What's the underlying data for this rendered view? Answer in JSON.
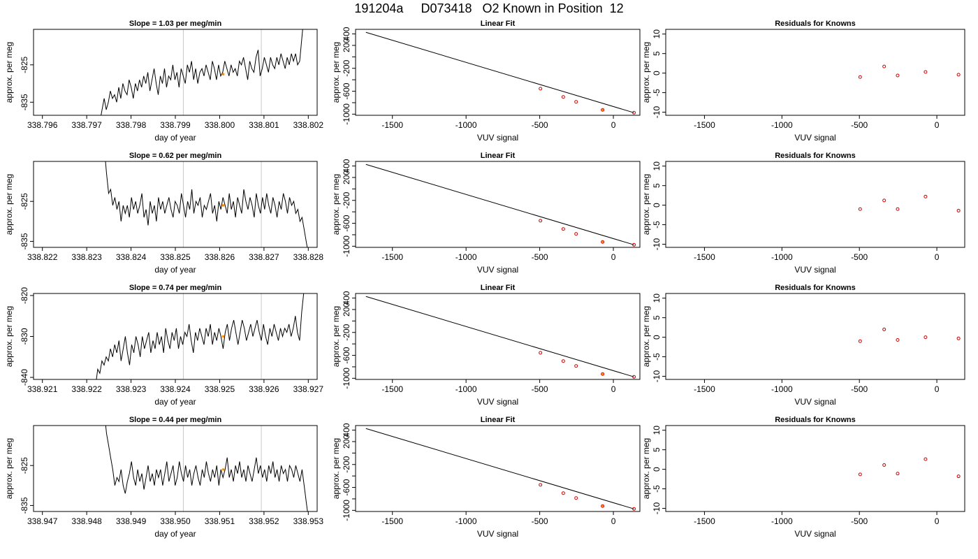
{
  "title": "191204a     D073418   O2 Known in Position  12",
  "chart_data": [
    {
      "type": "line",
      "row": 1,
      "column": 1,
      "title": "Slope =  1.03  per meg/min",
      "xlabel": "day of year",
      "ylabel": "approx. per meg",
      "xlim": [
        338.7958,
        338.8022
      ],
      "ylim": [
        -838.5,
        -815.5
      ],
      "xticks": [
        "338.796",
        "338.797",
        "338.798",
        "338.799",
        "338.800",
        "338.801",
        "338.802"
      ],
      "yticks": [
        "-835",
        "-825"
      ],
      "vlines": [
        338.79918,
        338.80094
      ],
      "highlight_point": {
        "x": 338.80008,
        "y": -827.5
      },
      "series": [
        {
          "x_start": 338.7973,
          "x_end": 338.8019,
          "values": [
            -840,
            -837,
            -834,
            -837,
            -835,
            -832,
            -834,
            -833,
            -835,
            -831,
            -834,
            -830,
            -832,
            -833,
            -829,
            -831,
            -834,
            -830,
            -832,
            -829,
            -831,
            -828,
            -830,
            -827,
            -832,
            -829,
            -826,
            -830,
            -833,
            -828,
            -830,
            -826,
            -831,
            -828,
            -829,
            -825,
            -829,
            -827,
            -831,
            -826,
            -828,
            -830,
            -825,
            -827,
            -824,
            -829,
            -826,
            -830,
            -827,
            -826,
            -828,
            -825,
            -827,
            -829,
            -824,
            -826,
            -829,
            -825,
            -828,
            -827,
            -824,
            -826,
            -828,
            -825,
            -827,
            -826,
            -828,
            -824,
            -825,
            -823,
            -826,
            -829,
            -824,
            -826,
            -827,
            -823,
            -821,
            -828,
            -826,
            -823,
            -825,
            -827,
            -823,
            -825,
            -826,
            -823,
            -825,
            -822,
            -824,
            -826,
            -823,
            -825,
            -822,
            -824,
            -822,
            -825,
            -824,
            -818,
            -812
          ]
        }
      ]
    },
    {
      "type": "scatter",
      "row": 1,
      "column": 2,
      "title": "Linear Fit",
      "xlabel": "VUV signal",
      "ylabel": "approx. per meg",
      "xlim": [
        -1750,
        180
      ],
      "ylim": [
        -1020,
        480
      ],
      "xticks": [
        -1500,
        -1000,
        -500,
        0
      ],
      "yticks": [
        -1000,
        -800,
        -600,
        -400,
        -200,
        0,
        200,
        400
      ],
      "ytick_labels": [
        "-1000",
        "",
        "-600",
        "",
        "-200",
        "",
        "200",
        "400"
      ],
      "fit_line": {
        "x": [
          -1680,
          140
        ],
        "y": [
          428,
          -975
        ]
      },
      "points": {
        "x": [
          -495,
          -340,
          -253,
          -73,
          140
        ],
        "y": [
          -555,
          -700,
          -785,
          -925,
          -975
        ]
      },
      "highlight_point": {
        "x": -73,
        "y": -925
      }
    },
    {
      "type": "scatter",
      "row": 1,
      "column": 3,
      "title": "Residuals for Knowns",
      "xlabel": "VUV signal",
      "ylabel": "approx. per meg",
      "xlim": [
        -1750,
        180
      ],
      "ylim": [
        -10.8,
        11.2
      ],
      "xticks": [
        -1500,
        -1000,
        -500,
        0
      ],
      "yticks": [
        -10,
        -5,
        0,
        5,
        10
      ],
      "points": {
        "x": [
          -495,
          -340,
          -253,
          -73,
          140
        ],
        "y": [
          -1.0,
          1.7,
          -0.6,
          0.3,
          -0.4
        ]
      }
    },
    {
      "type": "line",
      "row": 2,
      "column": 1,
      "title": "Slope =  0.62  per meg/min",
      "xlabel": "day of year",
      "ylabel": "approx. per meg",
      "xlim": [
        338.8218,
        338.8282
      ],
      "ylim": [
        -836.5,
        -815.0
      ],
      "xticks": [
        "338.822",
        "338.823",
        "338.824",
        "338.825",
        "338.826",
        "338.827",
        "338.828"
      ],
      "yticks": [
        "-835",
        "-825"
      ],
      "vlines": [
        338.82518,
        338.82694
      ],
      "highlight_point": {
        "x": 338.82608,
        "y": -826.0
      },
      "series": [
        {
          "x_start": 338.8234,
          "x_end": 338.828,
          "values": [
            -812,
            -818,
            -823,
            -822,
            -826,
            -824,
            -827,
            -825,
            -830,
            -826,
            -828,
            -826,
            -829,
            -824,
            -827,
            -825,
            -828,
            -826,
            -823,
            -829,
            -827,
            -831,
            -825,
            -828,
            -826,
            -830,
            -824,
            -827,
            -825,
            -828,
            -826,
            -824,
            -827,
            -829,
            -825,
            -826,
            -828,
            -823,
            -826,
            -829,
            -825,
            -827,
            -822,
            -828,
            -825,
            -826,
            -824,
            -829,
            -826,
            -827,
            -825,
            -823,
            -828,
            -826,
            -830,
            -825,
            -827,
            -824,
            -826,
            -828,
            -823,
            -827,
            -825,
            -829,
            -824,
            -826,
            -828,
            -822,
            -825,
            -827,
            -824,
            -826,
            -829,
            -823,
            -826,
            -828,
            -824,
            -827,
            -823,
            -826,
            -828,
            -824,
            -826,
            -829,
            -825,
            -827,
            -823,
            -825,
            -828,
            -824,
            -826,
            -825,
            -828,
            -827,
            -830,
            -829,
            -832,
            -835,
            -838
          ]
        }
      ]
    },
    {
      "type": "scatter",
      "row": 2,
      "column": 2,
      "title": "Linear Fit",
      "xlabel": "VUV signal",
      "ylabel": "approx. per meg",
      "xlim": [
        -1750,
        180
      ],
      "ylim": [
        -1020,
        480
      ],
      "xticks": [
        -1500,
        -1000,
        -500,
        0
      ],
      "yticks": [
        -1000,
        -800,
        -600,
        -400,
        -200,
        0,
        200,
        400
      ],
      "ytick_labels": [
        "-1000",
        "",
        "-600",
        "",
        "-200",
        "",
        "200",
        "400"
      ],
      "fit_line": {
        "x": [
          -1680,
          140
        ],
        "y": [
          428,
          -975
        ]
      },
      "points": {
        "x": [
          -495,
          -340,
          -253,
          -73,
          140
        ],
        "y": [
          -555,
          -700,
          -785,
          -925,
          -975
        ]
      },
      "highlight_point": {
        "x": -73,
        "y": -925
      }
    },
    {
      "type": "scatter",
      "row": 2,
      "column": 3,
      "title": "Residuals for Knowns",
      "xlabel": "VUV signal",
      "ylabel": "approx. per meg",
      "xlim": [
        -1750,
        180
      ],
      "ylim": [
        -10.8,
        11.2
      ],
      "xticks": [
        -1500,
        -1000,
        -500,
        0
      ],
      "yticks": [
        -10,
        -5,
        0,
        5,
        10
      ],
      "points": {
        "x": [
          -495,
          -340,
          -253,
          -73,
          140
        ],
        "y": [
          -1.0,
          1.2,
          -1.0,
          2.2,
          -1.4
        ]
      }
    },
    {
      "type": "line",
      "row": 3,
      "column": 1,
      "title": "Slope =  0.74  per meg/min",
      "xlabel": "day of year",
      "ylabel": "approx. per meg",
      "xlim": [
        338.9208,
        338.9272
      ],
      "ylim": [
        -840.5,
        -819.5
      ],
      "xticks": [
        "338.921",
        "338.922",
        "338.923",
        "338.924",
        "338.925",
        "338.926",
        "338.927"
      ],
      "yticks": [
        "-840",
        "-830",
        "-820"
      ],
      "vlines": [
        338.92418,
        338.92594
      ],
      "highlight_point": {
        "x": 338.92508,
        "y": -830.0
      },
      "series": [
        {
          "x_start": 338.9222,
          "x_end": 338.9269,
          "values": [
            -842,
            -838,
            -839,
            -836,
            -837,
            -835,
            -836,
            -833,
            -835,
            -832,
            -834,
            -831,
            -836,
            -833,
            -830,
            -834,
            -837,
            -832,
            -834,
            -830,
            -832,
            -835,
            -830,
            -833,
            -831,
            -829,
            -834,
            -831,
            -833,
            -829,
            -832,
            -830,
            -834,
            -828,
            -831,
            -833,
            -829,
            -831,
            -828,
            -833,
            -830,
            -832,
            -829,
            -830,
            -827,
            -831,
            -834,
            -829,
            -831,
            -828,
            -830,
            -832,
            -828,
            -830,
            -827,
            -832,
            -829,
            -831,
            -828,
            -830,
            -833,
            -829,
            -827,
            -831,
            -828,
            -826,
            -829,
            -832,
            -829,
            -826,
            -828,
            -831,
            -829,
            -827,
            -830,
            -828,
            -826,
            -829,
            -831,
            -827,
            -830,
            -832,
            -828,
            -830,
            -827,
            -829,
            -831,
            -828,
            -830,
            -828,
            -829,
            -827,
            -830,
            -828,
            -825,
            -829,
            -831,
            -824,
            -819
          ]
        }
      ]
    },
    {
      "type": "scatter",
      "row": 3,
      "column": 2,
      "title": "Linear Fit",
      "xlabel": "VUV signal",
      "ylabel": "approx. per meg",
      "xlim": [
        -1750,
        180
      ],
      "ylim": [
        -1020,
        480
      ],
      "xticks": [
        -1500,
        -1000,
        -500,
        0
      ],
      "yticks": [
        -1000,
        -800,
        -600,
        -400,
        -200,
        0,
        200,
        400
      ],
      "ytick_labels": [
        "-1000",
        "",
        "-600",
        "",
        "-200",
        "",
        "200",
        "400"
      ],
      "fit_line": {
        "x": [
          -1680,
          140
        ],
        "y": [
          428,
          -975
        ]
      },
      "points": {
        "x": [
          -495,
          -340,
          -253,
          -73,
          140
        ],
        "y": [
          -555,
          -700,
          -785,
          -925,
          -975
        ]
      },
      "highlight_point": {
        "x": -73,
        "y": -925
      }
    },
    {
      "type": "scatter",
      "row": 3,
      "column": 3,
      "title": "Residuals for Knowns",
      "xlabel": "VUV signal",
      "ylabel": "approx. per meg",
      "xlim": [
        -1750,
        180
      ],
      "ylim": [
        -10.8,
        11.2
      ],
      "xticks": [
        -1500,
        -1000,
        -500,
        0
      ],
      "yticks": [
        -10,
        -5,
        0,
        5,
        10
      ],
      "points": {
        "x": [
          -495,
          -340,
          -253,
          -73,
          140
        ],
        "y": [
          -1.0,
          2.0,
          -0.7,
          0.0,
          -0.3
        ]
      }
    },
    {
      "type": "line",
      "row": 4,
      "column": 1,
      "title": "Slope =  0.44  per meg/min",
      "xlabel": "day of year",
      "ylabel": "approx. per meg",
      "xlim": [
        338.9468,
        338.9532
      ],
      "ylim": [
        -836.5,
        -815.0
      ],
      "xticks": [
        "338.947",
        "338.948",
        "338.949",
        "338.950",
        "338.951",
        "338.952",
        "338.953"
      ],
      "yticks": [
        "-835",
        "-825"
      ],
      "vlines": [
        338.95018,
        338.95194
      ],
      "highlight_point": {
        "x": 338.95108,
        "y": -826.0
      },
      "series": [
        {
          "x_start": 338.9484,
          "x_end": 338.953,
          "values": [
            -812,
            -817,
            -820,
            -823,
            -826,
            -830,
            -828,
            -829,
            -826,
            -830,
            -832,
            -829,
            -827,
            -824,
            -828,
            -830,
            -826,
            -829,
            -827,
            -831,
            -828,
            -825,
            -829,
            -827,
            -830,
            -826,
            -828,
            -826,
            -830,
            -827,
            -824,
            -829,
            -827,
            -825,
            -830,
            -828,
            -824,
            -827,
            -829,
            -825,
            -828,
            -826,
            -830,
            -827,
            -825,
            -828,
            -830,
            -826,
            -828,
            -824,
            -827,
            -829,
            -826,
            -828,
            -825,
            -830,
            -826,
            -828,
            -826,
            -823,
            -828,
            -826,
            -829,
            -825,
            -827,
            -824,
            -828,
            -826,
            -829,
            -825,
            -827,
            -829,
            -826,
            -823,
            -827,
            -825,
            -828,
            -826,
            -829,
            -825,
            -827,
            -824,
            -828,
            -826,
            -829,
            -825,
            -827,
            -826,
            -829,
            -825,
            -826,
            -828,
            -825,
            -827,
            -829,
            -826,
            -830,
            -834,
            -838
          ]
        }
      ]
    },
    {
      "type": "scatter",
      "row": 4,
      "column": 2,
      "title": "Linear Fit",
      "xlabel": "VUV signal",
      "ylabel": "approx. per meg",
      "xlim": [
        -1750,
        180
      ],
      "ylim": [
        -1020,
        480
      ],
      "xticks": [
        -1500,
        -1000,
        -500,
        0
      ],
      "yticks": [
        -1000,
        -800,
        -600,
        -400,
        -200,
        0,
        200,
        400
      ],
      "ytick_labels": [
        "-1000",
        "",
        "-600",
        "",
        "-200",
        "",
        "200",
        "400"
      ],
      "fit_line": {
        "x": [
          -1680,
          140
        ],
        "y": [
          428,
          -975
        ]
      },
      "points": {
        "x": [
          -495,
          -340,
          -253,
          -73,
          140
        ],
        "y": [
          -555,
          -700,
          -785,
          -925,
          -975
        ]
      },
      "highlight_point": {
        "x": -73,
        "y": -925
      }
    },
    {
      "type": "scatter",
      "row": 4,
      "column": 3,
      "title": "Residuals for Knowns",
      "xlabel": "VUV signal",
      "ylabel": "approx. per meg",
      "xlim": [
        -1750,
        180
      ],
      "ylim": [
        -10.8,
        11.2
      ],
      "xticks": [
        -1500,
        -1000,
        -500,
        0
      ],
      "yticks": [
        -10,
        -5,
        0,
        5,
        10
      ],
      "points": {
        "x": [
          -495,
          -340,
          -253,
          -73,
          140
        ],
        "y": [
          -1.3,
          1.1,
          -1.1,
          2.6,
          -1.8
        ]
      }
    }
  ],
  "colors": {
    "line": "#000000",
    "highlight": "#ff8c00",
    "point": "#cc0000",
    "vline": "#c8c8c8",
    "axis": "#000000"
  }
}
